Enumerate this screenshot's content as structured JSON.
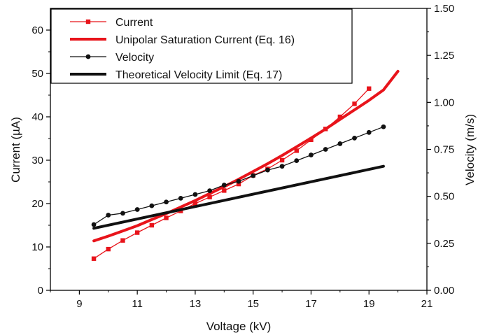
{
  "chart_data": {
    "type": "line",
    "title": "",
    "xlabel": "Voltage (kV)",
    "ylabel": "Current (µA)",
    "y2label": "Velocity (m/s)",
    "xlim": [
      8,
      21
    ],
    "ylim": [
      0,
      65
    ],
    "y2lim": [
      0,
      1.5
    ],
    "xticks": [
      9,
      11,
      13,
      15,
      17,
      19,
      21
    ],
    "yticks": [
      0,
      10,
      20,
      30,
      40,
      50,
      60
    ],
    "y2ticks": [
      "0.00",
      "0.25",
      "0.50",
      "0.75",
      "1.00",
      "1.25",
      "1.50"
    ],
    "legend_position": "top-left",
    "grid": false,
    "series": [
      {
        "name": "Current",
        "axis": "left",
        "style": "line-markers",
        "marker": "square",
        "color": "#e8141b",
        "x": [
          9.5,
          10,
          10.5,
          11,
          11.5,
          12,
          12.5,
          13,
          13.5,
          14,
          14.5,
          15,
          15.5,
          16,
          16.5,
          17,
          17.5,
          18,
          18.5,
          19
        ],
        "y": [
          7.3,
          9.5,
          11.5,
          13.3,
          15.0,
          16.7,
          18.3,
          20.0,
          21.5,
          23.0,
          24.5,
          26.5,
          28.0,
          30.0,
          32.2,
          34.7,
          37.2,
          40.0,
          43.0,
          46.5
        ]
      },
      {
        "name": "Unipolar Saturation Current (Eq. 16)",
        "axis": "left",
        "style": "thick-line",
        "color": "#e8141b",
        "x": [
          9.5,
          10,
          10.5,
          11,
          11.5,
          12,
          12.5,
          13,
          13.5,
          14,
          14.5,
          15,
          15.5,
          16,
          16.5,
          17,
          17.5,
          18,
          18.5,
          19,
          19.5,
          20
        ],
        "y": [
          11.4,
          12.5,
          13.7,
          14.9,
          16.3,
          17.7,
          19.2,
          20.7,
          22.3,
          23.9,
          25.6,
          27.4,
          29.2,
          31.1,
          33.1,
          35.1,
          37.2,
          39.4,
          41.6,
          43.8,
          46.2,
          50.5
        ]
      },
      {
        "name": "Velocity",
        "axis": "right",
        "style": "line-markers",
        "marker": "circle",
        "color": "#111111",
        "x": [
          9.5,
          10,
          10.5,
          11,
          11.5,
          12,
          12.5,
          13,
          13.5,
          14,
          14.5,
          15,
          15.5,
          16,
          16.5,
          17,
          17.5,
          18,
          18.5,
          19,
          19.5
        ],
        "y": [
          0.35,
          0.4,
          0.41,
          0.43,
          0.45,
          0.47,
          0.49,
          0.51,
          0.53,
          0.56,
          0.58,
          0.61,
          0.64,
          0.66,
          0.69,
          0.72,
          0.75,
          0.78,
          0.81,
          0.84,
          0.87
        ]
      },
      {
        "name": "Theoretical Velocity Limit (Eq. 17)",
        "axis": "right",
        "style": "thick-line",
        "color": "#111111",
        "x": [
          9.5,
          19.5
        ],
        "y": [
          0.33,
          0.66
        ]
      }
    ]
  }
}
